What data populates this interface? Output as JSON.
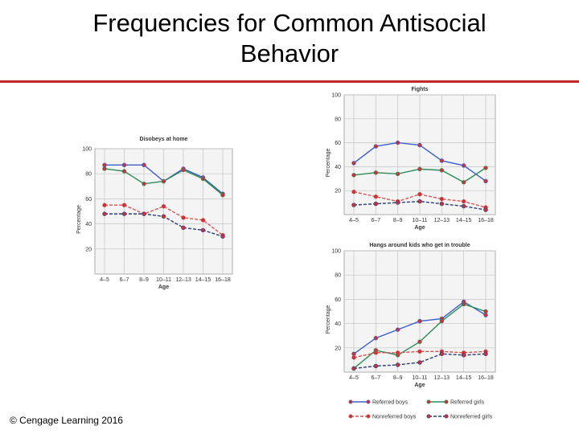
{
  "slide": {
    "title_line1": "Frequencies for Common Antisocial",
    "title_line2": "Behavior",
    "copyright": "© Cengage Learning 2016"
  },
  "colors": {
    "rule": "#c0282d",
    "referred_boys": "#3b5fc8",
    "referred_girls": "#2e8b57",
    "nonreferred_boys": "#d9534f",
    "nonreferred_girls": "#2b3d7a",
    "marker": "#c8323c"
  },
  "legend": {
    "placement": "bottom-right",
    "items": [
      "Referred boys",
      "Referred girls",
      "Nonreferred boys",
      "Nonreferred girls"
    ]
  },
  "chart_data": [
    {
      "type": "line",
      "title": "Disobeys at home",
      "xlabel": "Age",
      "ylabel": "Percentage",
      "categories": [
        "4–5",
        "6–7",
        "8–9",
        "10–11",
        "12–13",
        "14–15",
        "16–18"
      ],
      "y_ticks": [
        "100",
        "80",
        "60",
        "40",
        "20"
      ],
      "ylim": [
        0,
        100
      ],
      "grid": true,
      "series": [
        {
          "name": "Referred boys",
          "values": [
            87,
            87,
            87,
            74,
            84,
            77,
            64
          ],
          "dashed": false
        },
        {
          "name": "Referred girls",
          "values": [
            84,
            82,
            72,
            74,
            83,
            76,
            63
          ],
          "dashed": false
        },
        {
          "name": "Nonreferred boys",
          "values": [
            55,
            55,
            48,
            54,
            45,
            43,
            31
          ],
          "dashed": true
        },
        {
          "name": "Nonreferred girls",
          "values": [
            48,
            48,
            48,
            46,
            37,
            35,
            30
          ],
          "dashed": true
        }
      ]
    },
    {
      "type": "line",
      "title": "Fights",
      "xlabel": "Age",
      "ylabel": "Percentage",
      "categories": [
        "4–5",
        "6–7",
        "8–9",
        "10–11",
        "12–13",
        "14–15",
        "16–18"
      ],
      "y_ticks": [
        "100",
        "80",
        "60",
        "40",
        "20"
      ],
      "ylim": [
        0,
        100
      ],
      "grid": true,
      "series": [
        {
          "name": "Referred boys",
          "values": [
            43,
            57,
            60,
            58,
            45,
            41,
            28
          ],
          "dashed": false
        },
        {
          "name": "Referred girls",
          "values": [
            33,
            35,
            34,
            38,
            37,
            27,
            39
          ],
          "dashed": false
        },
        {
          "name": "Nonreferred boys",
          "values": [
            19,
            15,
            11,
            17,
            13,
            11,
            6
          ],
          "dashed": true
        },
        {
          "name": "Nonreferred girls",
          "values": [
            8,
            9,
            10,
            11,
            9,
            7,
            4
          ],
          "dashed": true
        }
      ]
    },
    {
      "type": "line",
      "title": "Hangs around kids who get in trouble",
      "xlabel": "Age",
      "ylabel": "Percentage",
      "categories": [
        "4–5",
        "6–7",
        "8–9",
        "10–11",
        "12–13",
        "14–15",
        "16–18"
      ],
      "y_ticks": [
        "100",
        "80",
        "60",
        "40",
        "20"
      ],
      "ylim": [
        0,
        100
      ],
      "grid": true,
      "series": [
        {
          "name": "Referred boys",
          "values": [
            15,
            28,
            35,
            42,
            44,
            58,
            47
          ],
          "dashed": false
        },
        {
          "name": "Referred girls",
          "values": [
            3,
            18,
            14,
            25,
            42,
            56,
            50
          ],
          "dashed": false
        },
        {
          "name": "Nonreferred boys",
          "values": [
            12,
            16,
            16,
            17,
            17,
            16,
            17
          ],
          "dashed": true
        },
        {
          "name": "Nonreferred girls",
          "values": [
            3,
            5,
            6,
            8,
            15,
            14,
            15
          ],
          "dashed": true
        }
      ]
    }
  ]
}
